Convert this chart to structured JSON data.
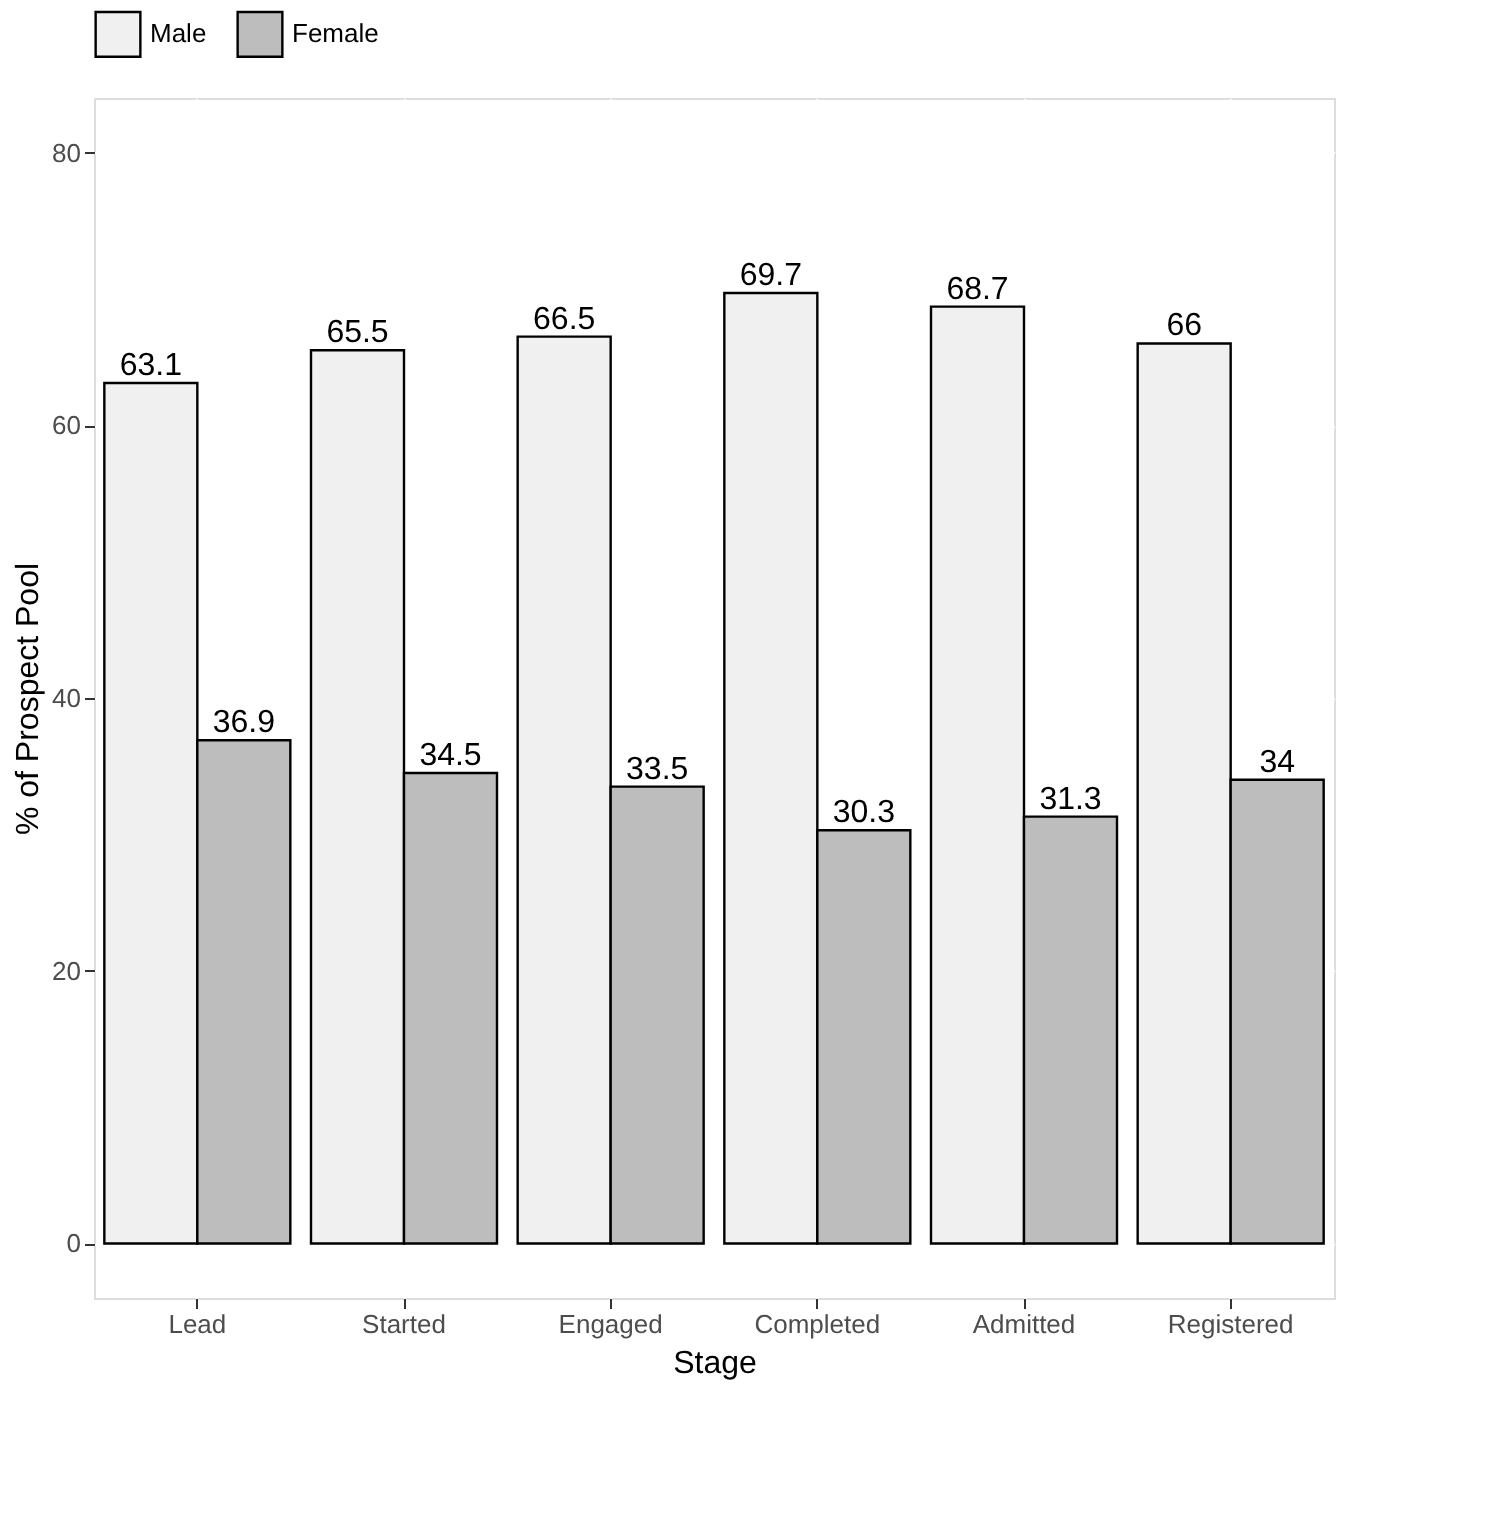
{
  "chart_data": {
    "type": "bar",
    "xlabel": "Stage",
    "ylabel": "% of Prospect Pool",
    "categories": [
      "Lead",
      "Started",
      "Engaged",
      "Completed",
      "Admitted",
      "Registered"
    ],
    "series": [
      {
        "name": "Male",
        "color": "#f0f0f0",
        "values": [
          63.1,
          65.5,
          66.5,
          69.7,
          68.7,
          66
        ]
      },
      {
        "name": "Female",
        "color": "#bdbdbd",
        "values": [
          36.9,
          34.5,
          33.5,
          30.3,
          31.3,
          34
        ]
      }
    ],
    "ylim": [
      -4,
      84
    ],
    "yticks": [
      0,
      20,
      40,
      60,
      80
    ],
    "grid": true,
    "legend": "top",
    "data_labels": true
  }
}
